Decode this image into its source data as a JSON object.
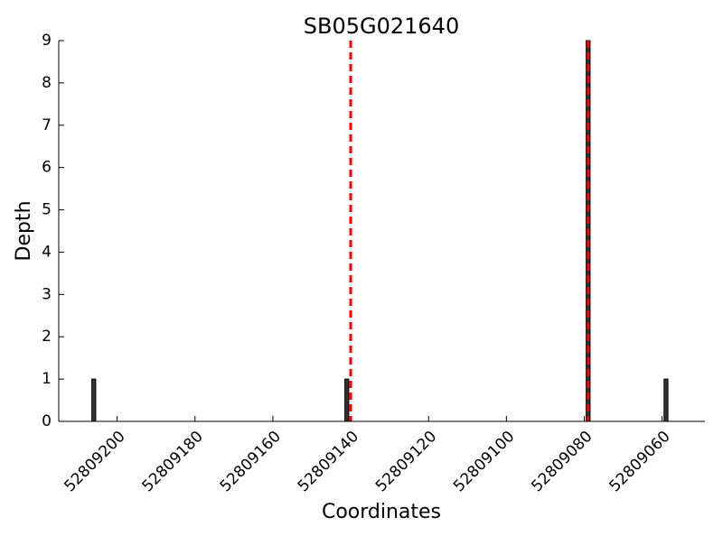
{
  "chart_data": {
    "type": "bar",
    "title": "SB05G021640",
    "x_label": "Coordinates",
    "y_label": "Depth",
    "x": [
      52809206,
      52809141,
      52809079,
      52809059
    ],
    "values": [
      1,
      1,
      9,
      1
    ],
    "color": "#333333",
    "xlim": [
      52809215,
      52809049
    ],
    "xticks": [
      52809200,
      52809180,
      52809160,
      52809140,
      52809120,
      52809100,
      52809080,
      52809060
    ],
    "ylim": [
      0,
      9
    ],
    "yticks": [
      0,
      1,
      2,
      3,
      4,
      5,
      6,
      7,
      8,
      9
    ],
    "vlines": [
      52809140,
      52809079
    ],
    "vline_color": "#ff0000"
  }
}
